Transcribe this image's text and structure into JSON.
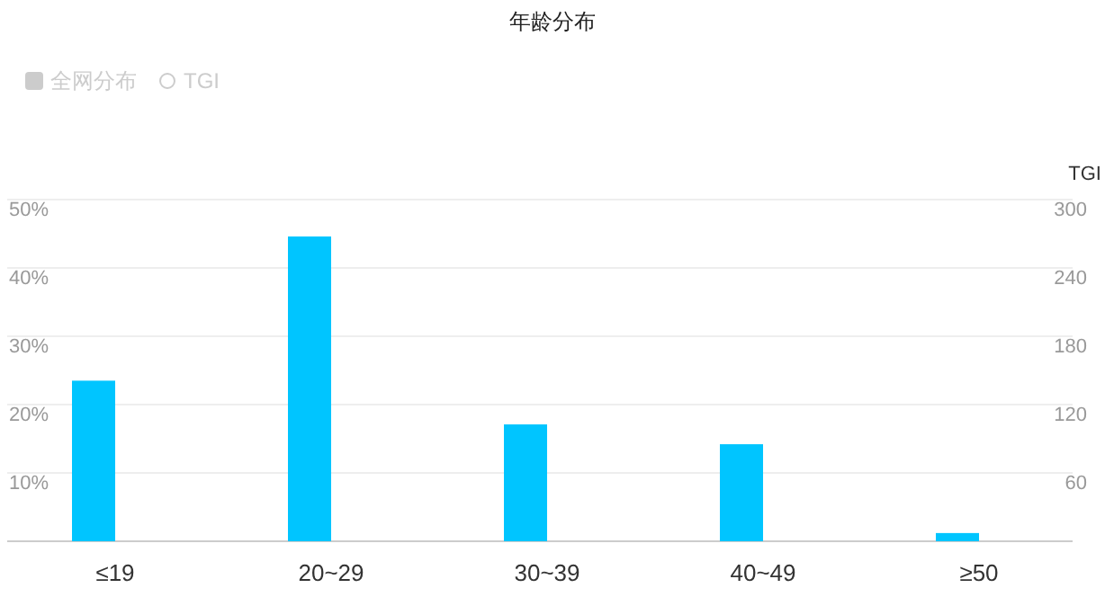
{
  "chart_data": {
    "type": "bar",
    "title": "年龄分布",
    "y2label": "TGI",
    "categories": [
      "≤19",
      "20~29",
      "30~39",
      "40~49",
      "≥50"
    ],
    "series": [
      {
        "color": "#00c5ff",
        "values": [
          23.5,
          44.6,
          17.1,
          14.2,
          1.2
        ]
      },
      {
        "name": "全网分布",
        "color": "#cccccc",
        "values": [
          null,
          null,
          null,
          null,
          null
        ]
      },
      {
        "name": "TGI",
        "type": "line",
        "marker": "circle",
        "color": "#cccccc",
        "values": [
          null,
          null,
          null,
          null,
          null
        ]
      }
    ],
    "ylim": [
      0,
      50
    ],
    "yticks": [
      {
        "value": 0,
        "label": null
      },
      {
        "value": 10,
        "label": "10%"
      },
      {
        "value": 20,
        "label": "20%"
      },
      {
        "value": 30,
        "label": "30%"
      },
      {
        "value": 40,
        "label": "40%"
      },
      {
        "value": 50,
        "label": "50%"
      }
    ],
    "y2lim": [
      0,
      300
    ],
    "y2ticks": [
      60,
      120,
      180,
      240,
      300
    ],
    "grid": "y",
    "legend": "top left"
  }
}
